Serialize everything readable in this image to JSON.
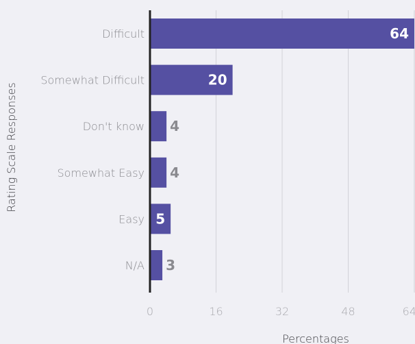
{
  "chart_data": {
    "type": "bar",
    "orientation": "horizontal",
    "categories": [
      "Difficult",
      "Somewhat Difficult",
      "Don't know",
      "Somewhat Easy",
      "Easy",
      "N/A"
    ],
    "values": [
      64,
      20,
      4,
      4,
      5,
      3
    ],
    "data_labels": [
      "64",
      "20",
      "4",
      "4",
      "5",
      "3"
    ],
    "xlabel": "Percentages",
    "ylabel": "Rating Scale Responses",
    "xlim": [
      0,
      64
    ],
    "xticks": [
      "0",
      "16",
      "32",
      "48",
      "64"
    ],
    "grid": "vertical",
    "colors": {
      "bar": "#5550a2",
      "background": "#f0f0f5",
      "grid": "#d2d2d8",
      "axis": "#222222"
    }
  }
}
